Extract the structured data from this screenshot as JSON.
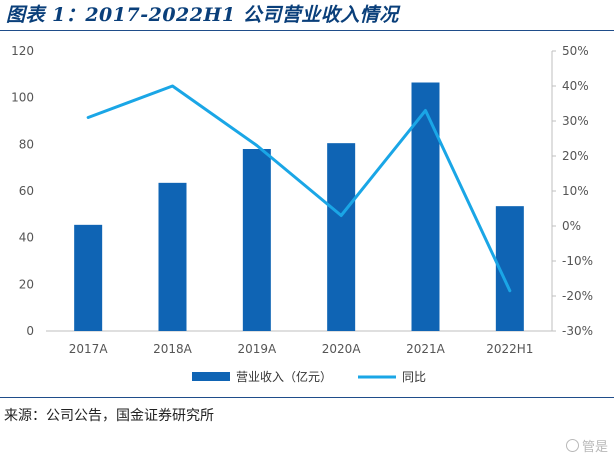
{
  "header": {
    "title": "图表 1：2017-2022H1 公司营业收入情况"
  },
  "chart_data": {
    "type": "bar",
    "categories": [
      "2017A",
      "2018A",
      "2019A",
      "2020A",
      "2021A",
      "2022H1"
    ],
    "series": [
      {
        "name": "营业收入（亿元）",
        "type": "bar",
        "axis": "left",
        "color": "#0f64b4",
        "values": [
          45.5,
          63.5,
          78,
          80.5,
          106.5,
          53.5
        ]
      },
      {
        "name": "同比",
        "type": "line",
        "axis": "right",
        "color": "#1aa6e6",
        "values": [
          31,
          40,
          23,
          3,
          33,
          -18.5
        ]
      }
    ],
    "y_left": {
      "ylim": [
        0,
        120
      ],
      "ticks": [
        "0",
        "20",
        "40",
        "60",
        "80",
        "100",
        "120"
      ]
    },
    "y_right": {
      "ylim": [
        -30,
        50
      ],
      "ticks": [
        "-30%",
        "-20%",
        "-10%",
        "0%",
        "10%",
        "20%",
        "30%",
        "40%",
        "50%"
      ]
    },
    "grid": false,
    "legend": "bottom-center"
  },
  "footer": {
    "source": "来源：公司公告，国金证券研究所",
    "watermark": "管是"
  }
}
